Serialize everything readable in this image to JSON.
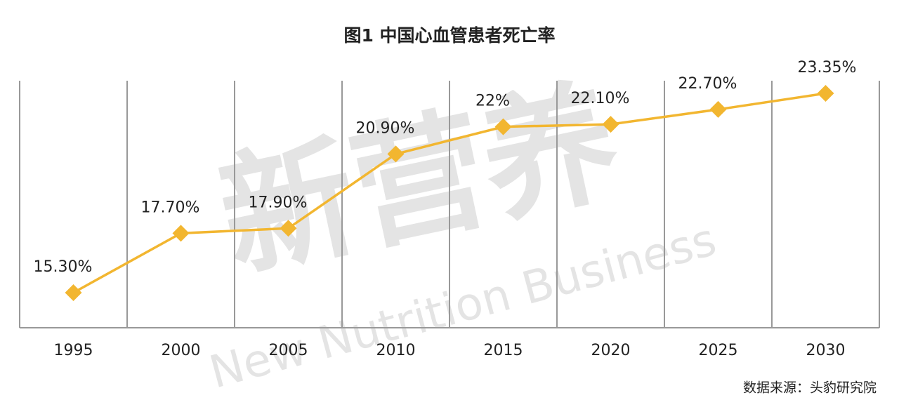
{
  "chart_data": {
    "type": "line",
    "title": "图1 中国心血管患者死亡率",
    "categories": [
      "1995",
      "2000",
      "2005",
      "2010",
      "2015",
      "2020",
      "2025",
      "2030"
    ],
    "values": [
      15.3,
      17.7,
      17.9,
      20.9,
      22,
      22.1,
      22.7,
      23.35
    ],
    "value_labels": [
      "15.30%",
      "17.70%",
      "17.90%",
      "20.90%",
      "22%",
      "22.10%",
      "22.70%",
      "23.35%"
    ],
    "color": "#f2b630",
    "grid": true,
    "source": "数据来源：头豹研究院",
    "watermark": [
      "新营养",
      "New Nutrition Business"
    ]
  }
}
